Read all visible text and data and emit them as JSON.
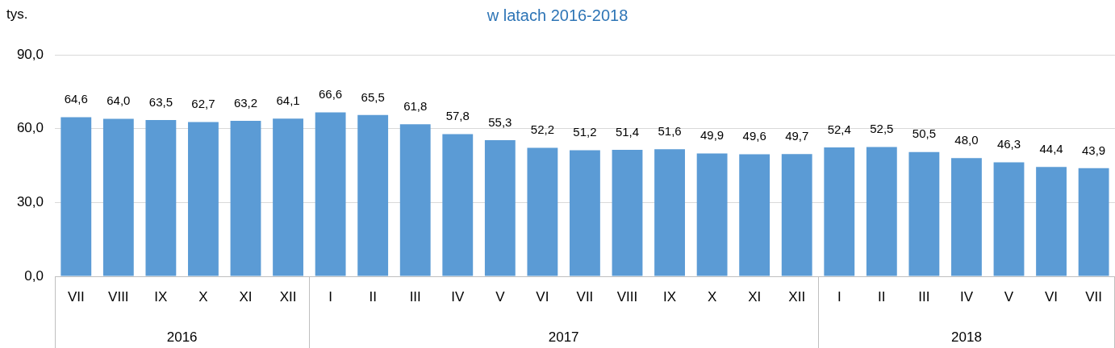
{
  "chart_data": {
    "type": "bar",
    "title": "w latach 2016-2018",
    "ylabel": "tys.",
    "categories": [
      "VII",
      "VIII",
      "IX",
      "X",
      "XI",
      "XII",
      "I",
      "II",
      "III",
      "IV",
      "V",
      "VI",
      "VII",
      "VIII",
      "IX",
      "X",
      "XI",
      "XII",
      "I",
      "II",
      "III",
      "IV",
      "V",
      "VI",
      "VII"
    ],
    "values": [
      64.6,
      64.0,
      63.5,
      62.7,
      63.2,
      64.1,
      66.6,
      65.5,
      61.8,
      57.8,
      55.3,
      52.2,
      51.2,
      51.4,
      51.6,
      49.9,
      49.6,
      49.7,
      52.4,
      52.5,
      50.5,
      48.0,
      46.3,
      44.4,
      43.9
    ],
    "color": "#5b9bd5",
    "ylim": [
      0,
      90
    ],
    "yticks": [
      {
        "value": 0,
        "label": "0,0"
      },
      {
        "value": 30,
        "label": "30,0"
      },
      {
        "value": 60,
        "label": "60,0"
      },
      {
        "value": 90,
        "label": "90,0"
      }
    ],
    "value_labels": [
      "64,6",
      "64,0",
      "63,5",
      "62,7",
      "63,2",
      "64,1",
      "66,6",
      "65,5",
      "61,8",
      "57,8",
      "55,3",
      "52,2",
      "51,2",
      "51,4",
      "51,6",
      "49,9",
      "49,6",
      "49,7",
      "52,4",
      "52,5",
      "50,5",
      "48,0",
      "46,3",
      "44,4",
      "43,9"
    ],
    "grid": "y",
    "legend": false,
    "annotations": [
      "2016",
      "2017",
      "2018"
    ]
  }
}
